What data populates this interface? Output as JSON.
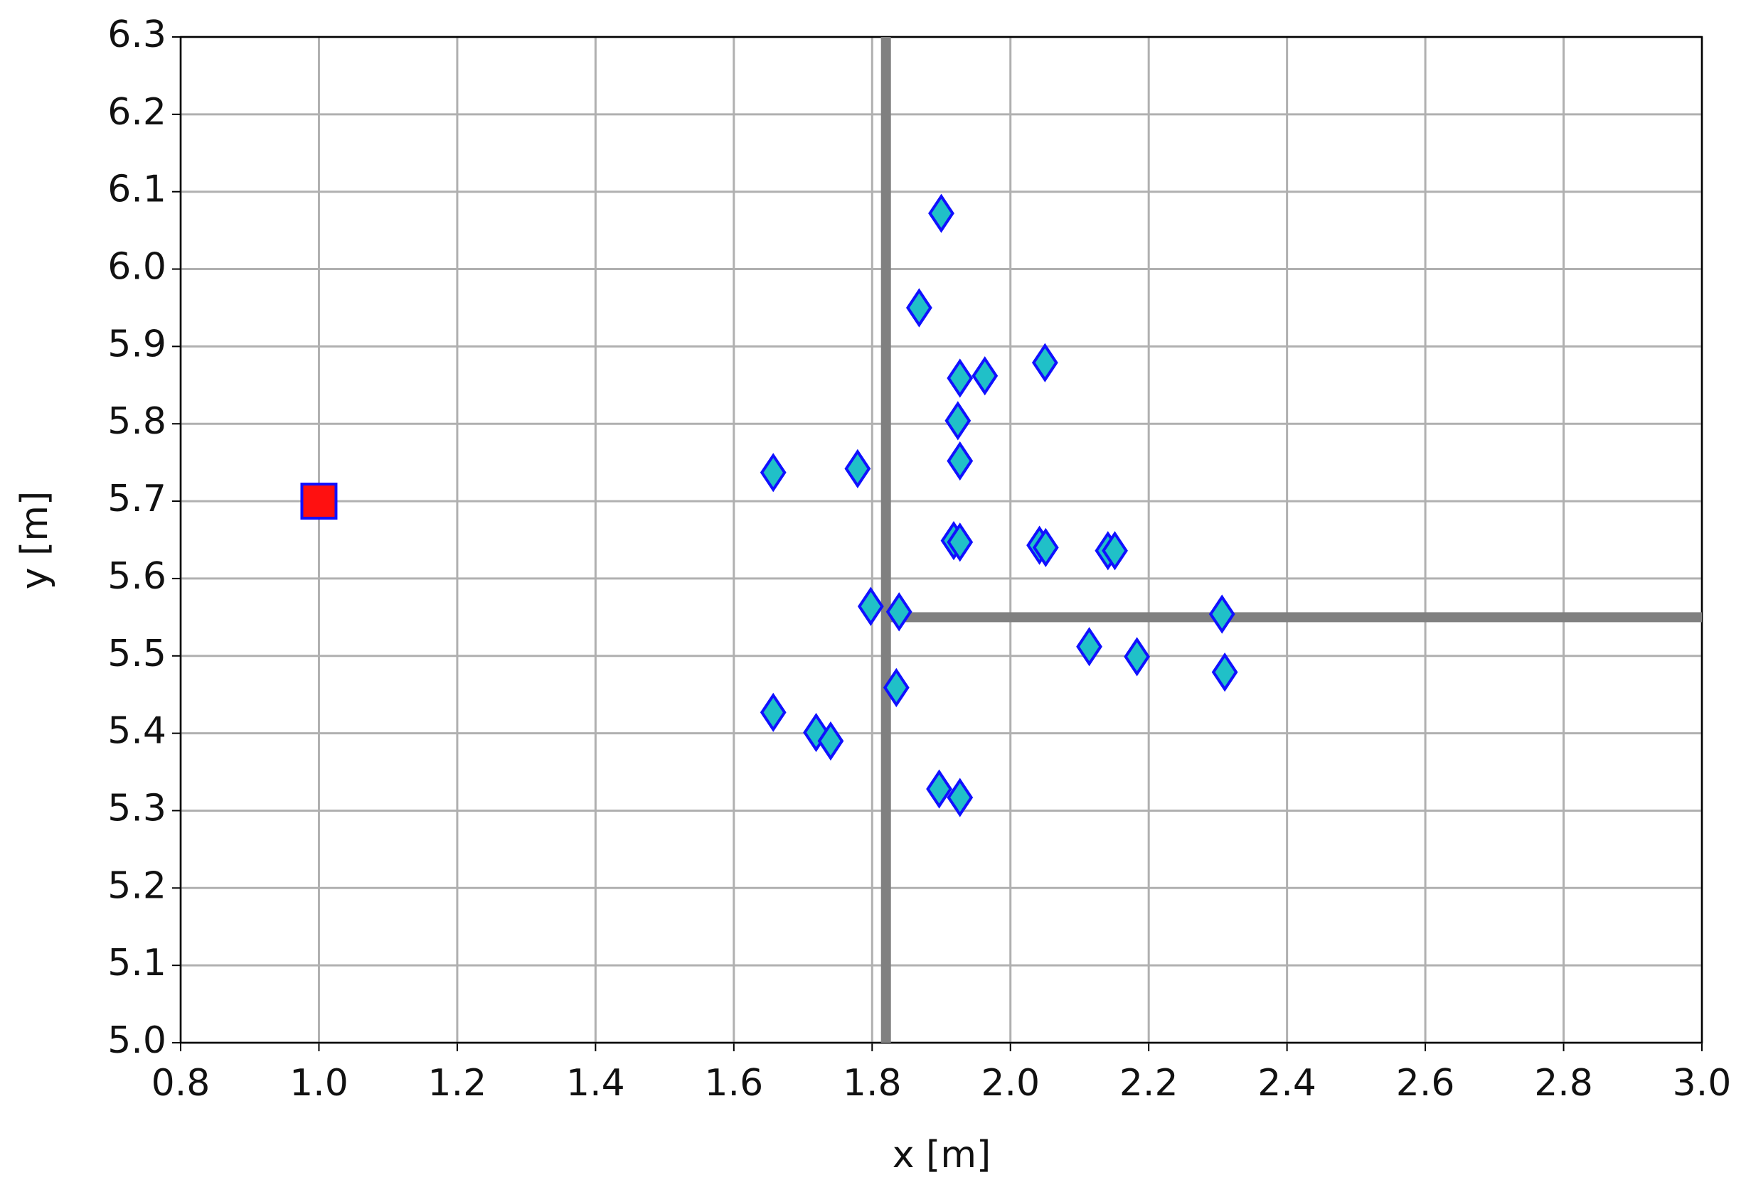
{
  "chart_data": {
    "type": "scatter",
    "xlabel": "x [m]",
    "ylabel": "y [m]",
    "xlim": [
      0.8,
      3.0
    ],
    "xticks": [
      0.8,
      {
        "value": 1,
        "label": "1.0"
      },
      1.2,
      1.4,
      1.6,
      1.8,
      {
        "value": 2,
        "label": "2.0"
      },
      2.2,
      2.4,
      2.6,
      2.8,
      {
        "value": 3,
        "label": "3.0"
      }
    ],
    "ylim": [
      5.0,
      6.3
    ],
    "yticks": [
      {
        "value": 5,
        "label": "5.0"
      },
      5.1,
      5.2,
      5.3,
      5.4,
      5.5,
      5.6,
      5.7,
      5.8,
      5.9,
      {
        "value": 6,
        "label": "6.0"
      },
      6.1,
      6.2,
      6.3
    ],
    "grid": true,
    "series": [
      {
        "color": "#808080",
        "line": true,
        "x": [
          1.82,
          1.82
        ],
        "y": [
          5.0,
          6.3
        ]
      },
      {
        "color": "#808080",
        "line": true,
        "x": [
          1.82,
          3.0
        ],
        "y": [
          5.55,
          5.55
        ]
      },
      {
        "color": "#20c0c8",
        "edgecolor": "#1010ff",
        "marker": "diamond",
        "x": [
          1.9,
          1.868,
          1.927,
          1.963,
          2.05,
          1.924,
          1.927,
          1.657,
          1.779,
          1.918,
          1.927,
          2.042,
          2.051,
          2.141,
          2.151,
          1.798,
          1.839,
          2.306,
          2.114,
          2.183,
          2.31,
          1.835,
          1.657,
          1.719,
          1.74,
          1.897,
          1.927
        ],
        "y": [
          6.072,
          5.95,
          5.859,
          5.862,
          5.879,
          5.804,
          5.752,
          5.737,
          5.742,
          5.649,
          5.647,
          5.643,
          5.64,
          5.636,
          5.636,
          5.564,
          5.557,
          5.554,
          5.512,
          5.499,
          5.479,
          5.459,
          5.427,
          5.401,
          5.39,
          5.328,
          5.317
        ]
      },
      {
        "color": "#ff1010",
        "edgecolor": "#1010ff",
        "marker": "square",
        "x": [
          1.0
        ],
        "y": [
          5.7
        ]
      }
    ]
  }
}
